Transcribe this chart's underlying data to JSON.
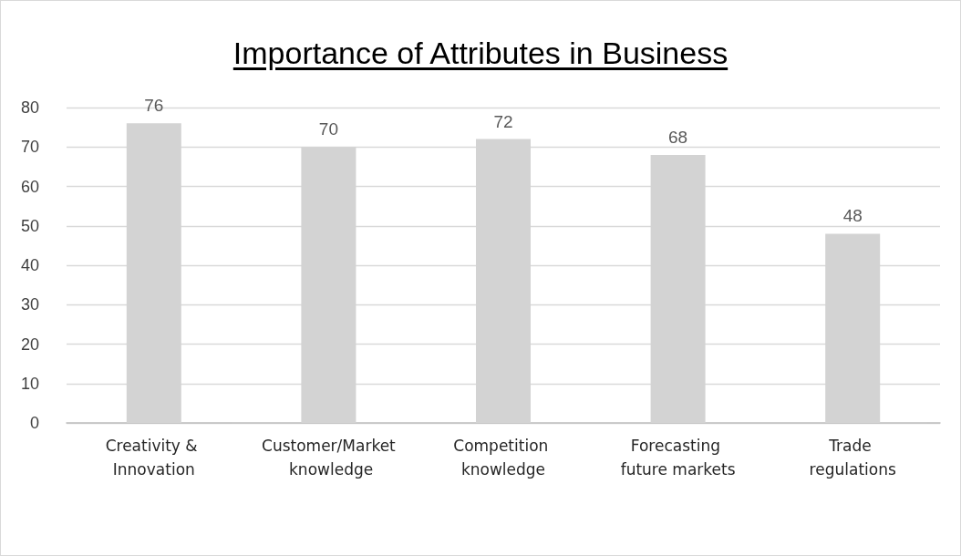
{
  "chart_data": {
    "type": "bar",
    "title": "Importance of Attributes in Business",
    "categories": [
      "Creativity & Innovation",
      "Customer/Market knowledge",
      "Competition knowledge",
      "Forecasting future markets",
      "Trade regulations"
    ],
    "values": [
      76,
      70,
      72,
      68,
      48
    ],
    "color": "#d3d3d3",
    "ylim": [
      0,
      80
    ],
    "yticks": [
      0,
      10,
      20,
      30,
      40,
      50,
      60,
      70,
      80
    ],
    "grid": "y",
    "data_labels": true
  }
}
